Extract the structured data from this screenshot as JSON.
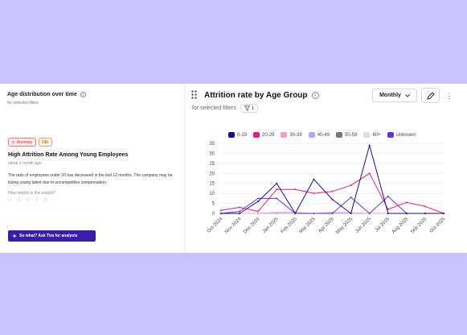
{
  "left_panel": {
    "title": "Age distribution over time",
    "subtitle": "for selected filters",
    "badges": [
      "Anomaly",
      "DEI"
    ],
    "insight_title": "High Attrition Rate Among Young Employees",
    "insight_time": "about 1 month ago",
    "insight_body": "The ratio of employees under 30 has decreased in the last 12 months. The company may be losing young talent due to uncompetitive compensation.",
    "helpful_label": "How helpful is this insight?",
    "stars": "☆ ☆ ☆ ☆ ☆",
    "ask_button": "So what? Ask Tira for analysis"
  },
  "right_panel": {
    "title": "Attrition rate by Age Group",
    "subtitle": "for selected filters",
    "filter_count": "1",
    "period_select": "Monthly"
  },
  "icons": {
    "info": "info-icon",
    "drag": "drag-handle-icon",
    "filter": "funnel-icon",
    "edit": "pencil-icon",
    "more": "kebab-icon",
    "sparkle": "sparkle-icon",
    "chevron": "chevron-down-icon"
  },
  "chart_data": {
    "type": "line",
    "categories": [
      "Oct 2024",
      "Nov 2024",
      "Dec 2024",
      "Jan 2025",
      "Feb 2025",
      "Mar 2025",
      "Apr 2025",
      "May 2025",
      "Jun 2025",
      "Jul 2025",
      "Aug 2025",
      "Sep 2025",
      "Oct 2025"
    ],
    "y_ticks": [
      0,
      5,
      10,
      15,
      20,
      25,
      30,
      35
    ],
    "ylim": [
      0,
      35
    ],
    "grid": true,
    "legend_position": "top",
    "series": [
      {
        "name": "0-19",
        "color": "#1a0f80",
        "values": [
          0,
          0,
          6,
          15,
          0,
          17,
          7,
          0,
          34,
          0,
          0,
          0,
          0
        ]
      },
      {
        "name": "20-29",
        "color": "#e0207a",
        "values": [
          1.5,
          3,
          1,
          12,
          12,
          10,
          11,
          14,
          20,
          2,
          5.5,
          3.5,
          0
        ]
      },
      {
        "name": "30-39",
        "color": "#f49bc7",
        "values": [
          0,
          0,
          0,
          0.5,
          0.5,
          0,
          0.5,
          0.3,
          0,
          0,
          0,
          0,
          0
        ]
      },
      {
        "name": "40-49",
        "color": "#b6a6f2",
        "values": [
          0,
          0,
          0,
          0,
          0,
          0,
          0,
          0,
          0,
          0,
          0,
          0,
          0
        ]
      },
      {
        "name": "50-59",
        "color": "#777777",
        "values": [
          0,
          0,
          0,
          0,
          0,
          0,
          0,
          0,
          0,
          0,
          0,
          0,
          0
        ]
      },
      {
        "name": "60+",
        "color": "#dddddd",
        "values": [
          0,
          0,
          0,
          0,
          0,
          0,
          0,
          0,
          0,
          0,
          0,
          0,
          0
        ]
      },
      {
        "name": "Unknown",
        "color": "#5f35d6",
        "values": [
          0,
          1,
          7.5,
          7.5,
          0,
          0,
          0,
          8,
          0,
          8.5,
          0,
          0,
          0
        ]
      }
    ]
  }
}
